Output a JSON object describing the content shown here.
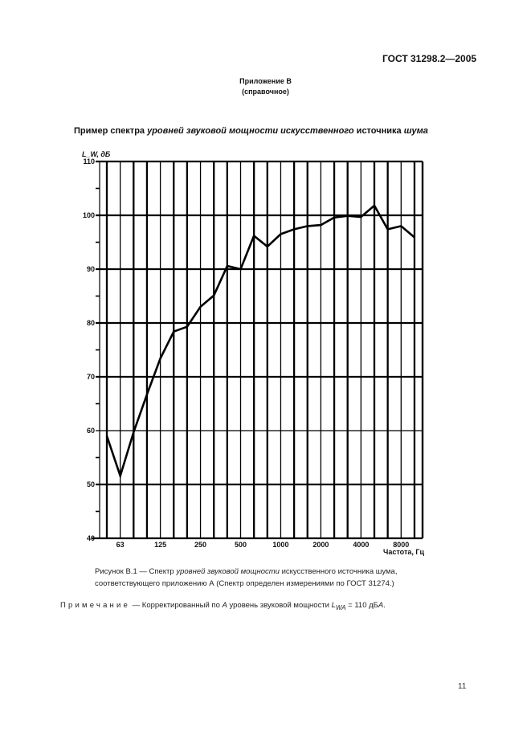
{
  "header": {
    "doc_code": "ГОСТ 31298.2—2005",
    "appendix_title": "Приложение В",
    "appendix_type": "(справочное)"
  },
  "figure_heading": {
    "part1": "Пример спектра ",
    "part2_italic": "уровней звуковой мощности искусственного",
    "part3": " источника ",
    "part4_italic": "шума"
  },
  "chart_data": {
    "type": "line",
    "title": "Пример спектра уровней звуковой мощности искусственного источника шума",
    "ylabel": "L_W, дБ",
    "xlabel": "Частота, Гц",
    "ylim": [
      40,
      110
    ],
    "yticks": [
      40,
      50,
      60,
      70,
      80,
      90,
      100,
      110
    ],
    "x_tick_labels": [
      "63",
      "125",
      "250",
      "500",
      "1000",
      "2000",
      "4000",
      "8000"
    ],
    "x_scale": "one-third-octave bands (log)",
    "grid": true,
    "x": [
      "50",
      "63",
      "80",
      "100",
      "125",
      "160",
      "200",
      "250",
      "315",
      "400",
      "500",
      "630",
      "800",
      "1000",
      "1250",
      "1600",
      "2000",
      "2500",
      "3150",
      "4000",
      "5000",
      "6300",
      "8000",
      "10000"
    ],
    "values": [
      59.0,
      51.6,
      59.7,
      66.7,
      73.4,
      78.4,
      79.3,
      83.0,
      85.1,
      90.6,
      90.0,
      96.2,
      94.2,
      96.5,
      97.4,
      98.0,
      98.2,
      99.6,
      99.9,
      99.7,
      101.8,
      97.4,
      98.0,
      95.9
    ],
    "legend": []
  },
  "caption": {
    "line1_a": "Рисунок В.1 — Спектр ",
    "line1_b_italic": "уровней звуковой мощности",
    "line1_c": " искусственного источника шума,",
    "line2": "соответствующего приложению А (Спектр определен измерениями по ГОСТ 31274.)"
  },
  "note": {
    "label": "Примечание",
    "text_a": " — Корректированный по ",
    "text_a_italic": "A",
    "text_b": " уровень звуковой мощности ",
    "lwa": "L",
    "lwa_sub": "WA",
    "text_c": " = 110 дБ",
    "text_c_italic": "A",
    "text_d": "."
  },
  "page_number": "11",
  "colors": {
    "ink": "#000000",
    "paper": "#ffffff"
  }
}
